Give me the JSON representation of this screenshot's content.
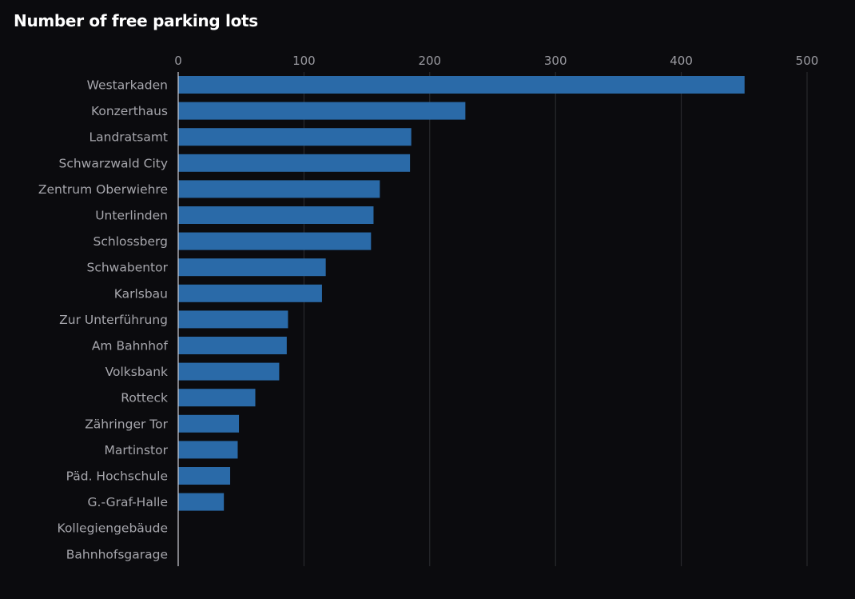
{
  "colors": {
    "background": "#0b0b0e",
    "bar": "#2a6aa8",
    "grid": "#2e2f33",
    "axis": "#cfcfd4",
    "text": "#a6a6ac",
    "title": "#ffffff"
  },
  "chart_data": {
    "type": "bar",
    "orientation": "horizontal",
    "title": "Number of free parking lots",
    "xlabel": "",
    "ylabel": "",
    "xlim": [
      0,
      500
    ],
    "xticks": [
      0,
      100,
      200,
      300,
      400,
      500
    ],
    "grid": true,
    "legend": "none",
    "categories": [
      "Westarkaden",
      "Konzerthaus",
      "Landratsamt",
      "Schwarzwald City",
      "Zentrum Oberwiehre",
      "Unterlinden",
      "Schlossberg",
      "Schwabentor",
      "Karlsbau",
      "Zur Unterführung",
      "Am Bahnhof",
      "Volksbank",
      "Rotteck",
      "Zähringer Tor",
      "Martinstor",
      "Päd. Hochschule",
      "G.-Graf-Halle",
      "Kollegiengebäude",
      "Bahnhofsgarage"
    ],
    "values": [
      450,
      228,
      185,
      184,
      160,
      155,
      153,
      117,
      114,
      87,
      86,
      80,
      61,
      48,
      47,
      41,
      36,
      0,
      0
    ]
  }
}
